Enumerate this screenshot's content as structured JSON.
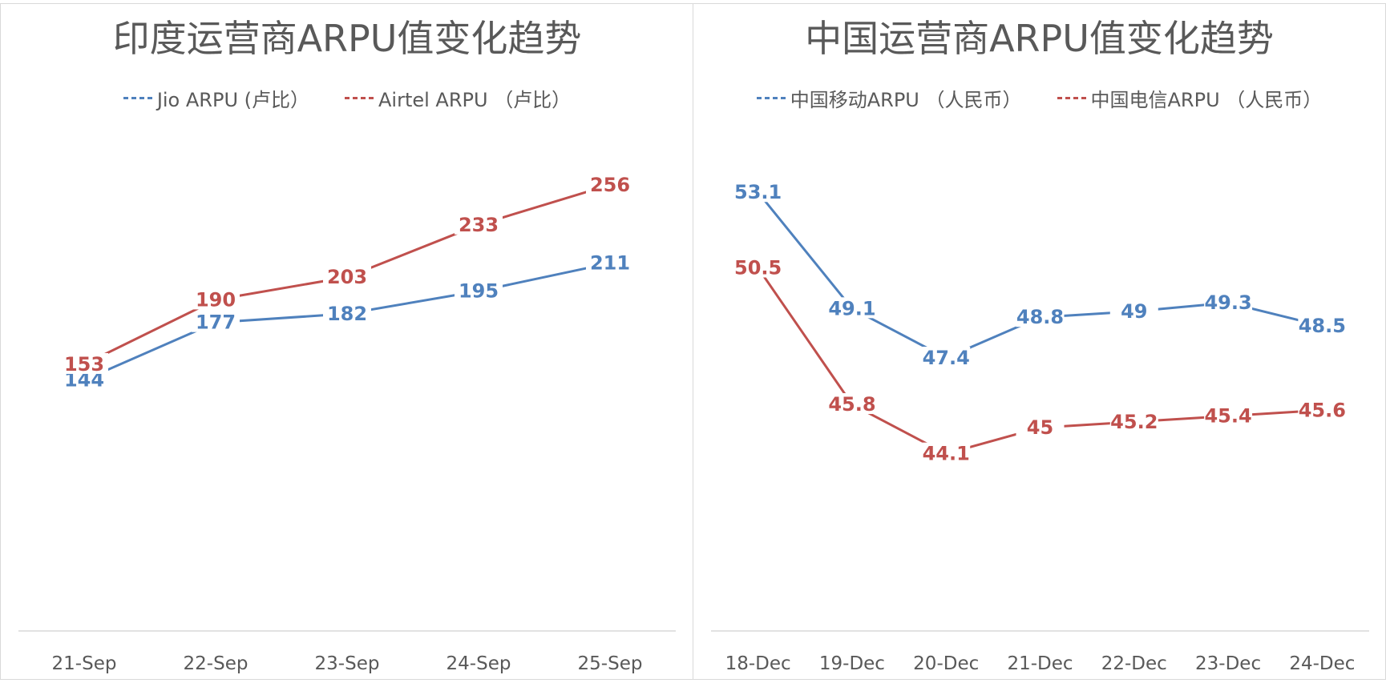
{
  "colors": {
    "blue": "#4F81BD",
    "red": "#C0504D",
    "axis": "#d9d9d9",
    "text": "#595959"
  },
  "chart_data": [
    {
      "type": "line",
      "title": "印度运营商ARPU值变化趋势",
      "categories": [
        "21-Sep",
        "22-Sep",
        "23-Sep",
        "24-Sep",
        "25-Sep"
      ],
      "series": [
        {
          "name": "Jio ARPU (卢比）",
          "color": "#4F81BD",
          "values": [
            144,
            177,
            182,
            195,
            211
          ]
        },
        {
          "name": "Airtel ARPU （卢比）",
          "color": "#C0504D",
          "values": [
            153,
            190,
            203,
            233,
            256
          ]
        }
      ],
      "xlabel": "",
      "ylabel": "",
      "ylim": [
        0,
        300
      ],
      "grid": false,
      "legend": "top"
    },
    {
      "type": "line",
      "title": "中国运营商ARPU值变化趋势",
      "categories": [
        "18-Dec",
        "19-Dec",
        "20-Dec",
        "21-Dec",
        "22-Dec",
        "23-Dec",
        "24-Dec"
      ],
      "series": [
        {
          "name": "中国移动ARPU （人民币）",
          "color": "#4F81BD",
          "values": [
            53.1,
            49.1,
            47.4,
            48.8,
            49,
            49.3,
            48.5
          ]
        },
        {
          "name": "中国电信ARPU （人民币）",
          "color": "#C0504D",
          "values": [
            50.5,
            45.8,
            44.1,
            45,
            45.2,
            45.4,
            45.6
          ]
        }
      ],
      "xlabel": "",
      "ylabel": "",
      "ylim": [
        38,
        56
      ],
      "grid": false,
      "legend": "top"
    }
  ]
}
